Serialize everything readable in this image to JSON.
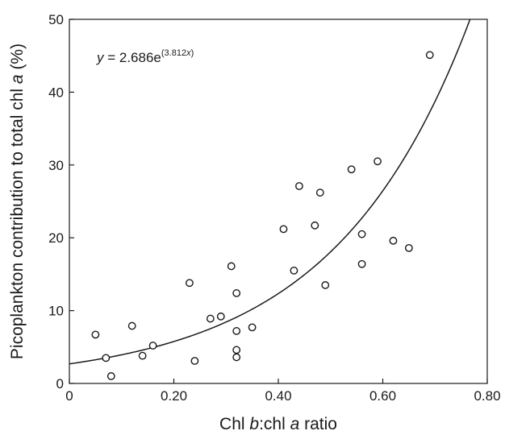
{
  "chart_data": {
    "type": "scatter",
    "title": "",
    "xlabel_parts": [
      "Chl ",
      "b",
      ":chl ",
      "a",
      " ratio"
    ],
    "ylabel_parts": [
      "Picoplankton contribution to total chl ",
      "a",
      " (%)"
    ],
    "xlim": [
      0,
      0.8
    ],
    "ylim": [
      0,
      50
    ],
    "x_ticks": [
      0,
      0.2,
      0.4,
      0.6,
      0.8
    ],
    "x_tick_labels": [
      "0",
      "0.20",
      "0.40",
      "0.60",
      "0.80"
    ],
    "y_ticks": [
      0,
      10,
      20,
      30,
      40,
      50
    ],
    "y_tick_labels": [
      "0",
      "10",
      "20",
      "30",
      "40",
      "50"
    ],
    "grid": false,
    "legend": "none",
    "points": [
      {
        "x": 0.05,
        "y": 6.7
      },
      {
        "x": 0.07,
        "y": 3.5
      },
      {
        "x": 0.08,
        "y": 1.0
      },
      {
        "x": 0.12,
        "y": 7.9
      },
      {
        "x": 0.14,
        "y": 3.8
      },
      {
        "x": 0.16,
        "y": 5.2
      },
      {
        "x": 0.23,
        "y": 13.8
      },
      {
        "x": 0.24,
        "y": 3.1
      },
      {
        "x": 0.27,
        "y": 8.9
      },
      {
        "x": 0.29,
        "y": 9.2
      },
      {
        "x": 0.31,
        "y": 16.1
      },
      {
        "x": 0.32,
        "y": 12.4
      },
      {
        "x": 0.32,
        "y": 7.2
      },
      {
        "x": 0.32,
        "y": 4.6
      },
      {
        "x": 0.32,
        "y": 3.6
      },
      {
        "x": 0.35,
        "y": 7.7
      },
      {
        "x": 0.41,
        "y": 21.2
      },
      {
        "x": 0.43,
        "y": 15.5
      },
      {
        "x": 0.44,
        "y": 27.1
      },
      {
        "x": 0.47,
        "y": 21.7
      },
      {
        "x": 0.48,
        "y": 26.2
      },
      {
        "x": 0.49,
        "y": 13.5
      },
      {
        "x": 0.54,
        "y": 29.4
      },
      {
        "x": 0.56,
        "y": 20.5
      },
      {
        "x": 0.56,
        "y": 16.4
      },
      {
        "x": 0.59,
        "y": 30.5
      },
      {
        "x": 0.62,
        "y": 19.6
      },
      {
        "x": 0.65,
        "y": 18.6
      },
      {
        "x": 0.69,
        "y": 45.1
      }
    ],
    "fit": {
      "a": 2.686,
      "b": 3.812
    },
    "equation": {
      "lhs": "y",
      "mid": " = 2.686e",
      "sup_pre": "(3.812",
      "sup_var": "x",
      "sup_post": ")"
    },
    "colors": {
      "axis": "#1a1a1a",
      "curve": "#1a1a1a",
      "marker_edge": "#1a1a1a",
      "marker_fill": "#ffffff"
    }
  }
}
